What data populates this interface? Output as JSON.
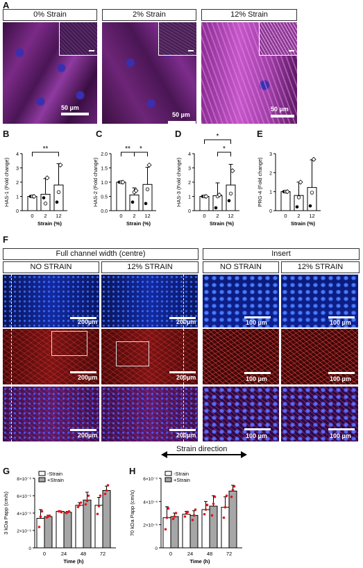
{
  "panel_labels": {
    "A": "A",
    "B": "B",
    "C": "C",
    "D": "D",
    "E": "E",
    "F": "F",
    "G": "G",
    "H": "H"
  },
  "panelA": {
    "headers": [
      "0% Strain",
      "2% Strain",
      "12% Strain"
    ],
    "scale": "50 µm"
  },
  "panelF": {
    "group_full": "Full channel width (centre)",
    "group_insert": "Insert",
    "cols": [
      "NO STRAIN",
      "12% STRAIN",
      "NO STRAIN",
      "12% STRAIN"
    ],
    "scale_full": "200µm",
    "scale_insert": "100 µm",
    "strain_direction": "Strain direction"
  },
  "chart_data": [
    {
      "id": "B",
      "type": "bar",
      "ylabel": "HAS-1 (Fold change)",
      "xlabel": "Strain  (%)",
      "categories": [
        "0",
        "2",
        "12"
      ],
      "values": [
        1.0,
        1.15,
        1.8
      ],
      "errors": [
        0.0,
        1.1,
        1.5
      ],
      "ylim": [
        0,
        4
      ],
      "yticks": [
        "0",
        "1",
        "2",
        "3",
        "4"
      ],
      "points": [
        [
          1,
          1,
          1
        ],
        [
          0.9,
          0.5,
          2.3
        ],
        [
          0.6,
          1.3,
          3.2
        ]
      ],
      "sig": [
        {
          "from": 0,
          "to": 2,
          "label": "**"
        }
      ]
    },
    {
      "id": "C",
      "type": "bar",
      "ylabel": "HAS-2 (Fold change)",
      "xlabel": "Strain  (%)",
      "categories": [
        "0",
        "2",
        "12"
      ],
      "values": [
        1.0,
        0.55,
        0.92
      ],
      "errors": [
        0.0,
        0.25,
        0.6
      ],
      "ylim": [
        0,
        2.0
      ],
      "yticks": [
        "0.0",
        "0.5",
        "1.0",
        "1.5",
        "2.0"
      ],
      "points": [
        [
          1,
          1,
          1
        ],
        [
          0.3,
          0.65,
          0.7
        ],
        [
          0.25,
          0.75,
          1.6
        ]
      ],
      "sig": [
        {
          "from": 0,
          "to": 1,
          "label": "**"
        },
        {
          "from": 1,
          "to": 2,
          "label": "*"
        }
      ]
    },
    {
      "id": "D",
      "type": "bar",
      "ylabel": "HAS-3 (Fold change)",
      "xlabel": "Strain  (%)",
      "categories": [
        "0",
        "2",
        "12"
      ],
      "values": [
        1.0,
        1.05,
        1.8
      ],
      "errors": [
        0.0,
        0.9,
        1.45
      ],
      "ylim": [
        0,
        4
      ],
      "yticks": [
        "0",
        "1",
        "2",
        "3",
        "4"
      ],
      "points": [
        [
          1,
          1,
          1
        ],
        [
          0.2,
          1,
          1.1
        ],
        [
          0.7,
          1.2,
          2.8
        ]
      ],
      "sig": [
        {
          "from": 0,
          "to": 2,
          "label": "*",
          "level": 2
        },
        {
          "from": 1,
          "to": 2,
          "label": "*",
          "level": 1
        }
      ]
    },
    {
      "id": "E",
      "type": "bar",
      "ylabel": "PRG-4 (Fold change)",
      "xlabel": "Strain  (%)",
      "categories": [
        "0",
        "2",
        "12"
      ],
      "values": [
        1.0,
        0.8,
        1.22
      ],
      "errors": [
        0.0,
        0.7,
        1.45
      ],
      "ylim": [
        0,
        3
      ],
      "yticks": [
        "0",
        "1",
        "2",
        "3"
      ],
      "points": [
        [
          1,
          1,
          1
        ],
        [
          0.2,
          0.7,
          1.5
        ],
        [
          0.25,
          0.95,
          2.7
        ]
      ],
      "sig": []
    },
    {
      "id": "G",
      "type": "bar",
      "ylabel": "3 kDa Papp (cm/s)",
      "xlabel": "Time (h)",
      "categories": [
        "0",
        "24",
        "48",
        "72"
      ],
      "series": [
        {
          "name": "-Strain",
          "values": [
            3.4,
            4.2,
            4.9,
            4.9
          ]
        },
        {
          "name": "+Strain",
          "values": [
            3.6,
            4.1,
            5.5,
            6.6
          ]
        }
      ],
      "errors": [
        [
          1.0,
          0.05,
          0.3,
          0.9
        ],
        [
          0.15,
          0.1,
          0.9,
          0.5
        ]
      ],
      "ylim": [
        0,
        8
      ],
      "yticks": [
        "0",
        "2×10⁻⁶",
        "4×10⁻⁶",
        "6×10⁻⁶",
        "8×10⁻⁶"
      ],
      "points": [
        [
          [
            2.4,
            3.6,
            4.2
          ],
          [
            3.5,
            3.6,
            3.7
          ]
        ],
        [
          [
            4.2,
            4.2,
            4.1
          ],
          [
            4.0,
            4.1,
            4.2
          ]
        ],
        [
          [
            4.7,
            4.9,
            5.2
          ],
          [
            5.0,
            5.4,
            6.0
          ]
        ],
        [
          [
            3.9,
            4.8,
            6.0
          ],
          [
            6.2,
            6.6,
            7.2
          ]
        ]
      ],
      "legend": "top-left"
    },
    {
      "id": "H",
      "type": "bar",
      "ylabel": "70 kDa Papp (cm/s)",
      "xlabel": "Time (h)",
      "categories": [
        "0",
        "24",
        "48",
        "72"
      ],
      "series": [
        {
          "name": "-Strain",
          "values": [
            2.6,
            2.9,
            3.3,
            3.5
          ]
        },
        {
          "name": "+Strain",
          "values": [
            2.7,
            2.8,
            3.6,
            4.9
          ]
        }
      ],
      "errors": [
        [
          0.95,
          0.25,
          0.7,
          0.9
        ],
        [
          0.3,
          0.4,
          0.9,
          0.5
        ]
      ],
      "ylim": [
        0,
        6
      ],
      "yticks": [
        "0",
        "2×10⁻⁶",
        "4×10⁻⁶",
        "6×10⁻⁶"
      ],
      "points": [
        [
          [
            1.6,
            2.6,
            3.4
          ],
          [
            2.5,
            2.7,
            3.0
          ]
        ],
        [
          [
            2.7,
            3.0,
            3.1
          ],
          [
            2.4,
            2.8,
            3.3
          ]
        ],
        [
          [
            2.9,
            3.3,
            3.7
          ],
          [
            2.8,
            3.8,
            4.4
          ]
        ],
        [
          [
            2.6,
            3.5,
            4.5
          ],
          [
            4.4,
            5.0,
            5.3
          ]
        ]
      ],
      "legend": "top-left"
    }
  ],
  "colors": {
    "bar_open": "#ffffff",
    "bar_gray": "#a6a6a6",
    "dot_red": "#e0161b",
    "axis": "#000000"
  }
}
